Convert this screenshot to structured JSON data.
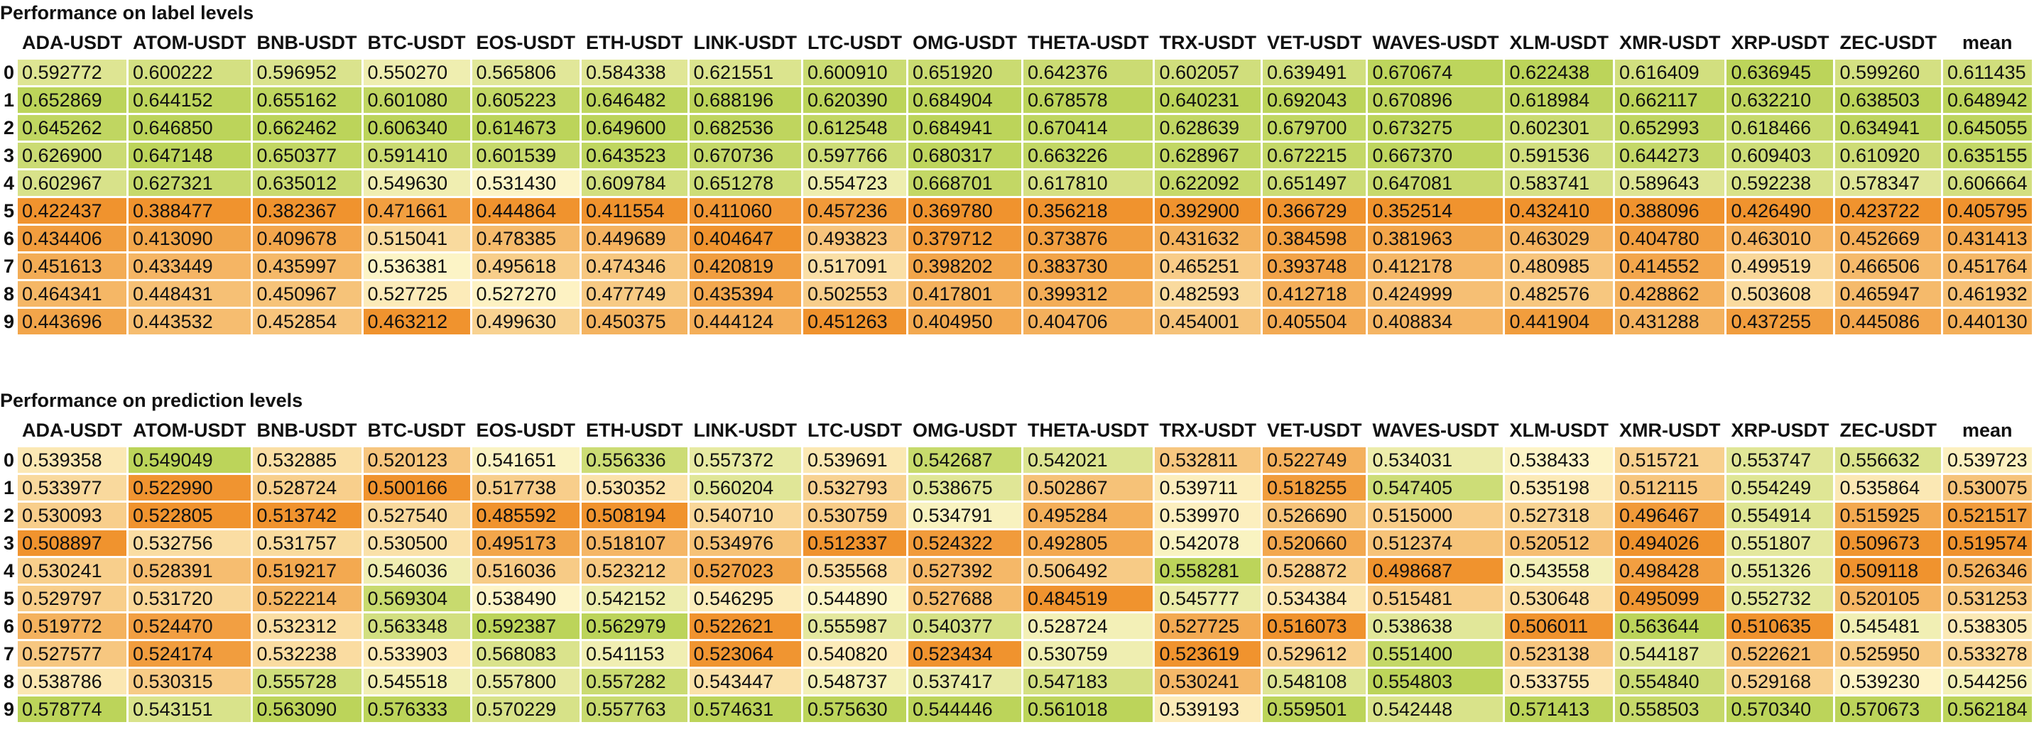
{
  "index_labels": [
    "0",
    "1",
    "2",
    "3",
    "4",
    "5",
    "6",
    "7",
    "8",
    "9"
  ],
  "columns": [
    "ADA-USDT",
    "ATOM-USDT",
    "BNB-USDT",
    "BTC-USDT",
    "EOS-USDT",
    "ETH-USDT",
    "LINK-USDT",
    "LTC-USDT",
    "OMG-USDT",
    "THETA-USDT",
    "TRX-USDT",
    "VET-USDT",
    "WAVES-USDT",
    "XLM-USDT",
    "XMR-USDT",
    "XRP-USDT",
    "ZEC-USDT",
    "mean"
  ],
  "heatmap_colors": {
    "low": "#f0932e",
    "mid": "#fdf5c8",
    "high": "#bcd45a"
  },
  "tables": [
    {
      "title": "Performance on label levels",
      "rows": [
        [
          "0.592772",
          "0.600222",
          "0.596952",
          "0.550270",
          "0.565806",
          "0.584338",
          "0.621551",
          "0.600910",
          "0.651920",
          "0.642376",
          "0.602057",
          "0.639491",
          "0.670674",
          "0.622438",
          "0.616409",
          "0.636945",
          "0.599260",
          "0.611435"
        ],
        [
          "0.652869",
          "0.644152",
          "0.655162",
          "0.601080",
          "0.605223",
          "0.646482",
          "0.688196",
          "0.620390",
          "0.684904",
          "0.678578",
          "0.640231",
          "0.692043",
          "0.670896",
          "0.618984",
          "0.662117",
          "0.632210",
          "0.638503",
          "0.648942"
        ],
        [
          "0.645262",
          "0.646850",
          "0.662462",
          "0.606340",
          "0.614673",
          "0.649600",
          "0.682536",
          "0.612548",
          "0.684941",
          "0.670414",
          "0.628639",
          "0.679700",
          "0.673275",
          "0.602301",
          "0.652993",
          "0.618466",
          "0.634941",
          "0.645055"
        ],
        [
          "0.626900",
          "0.647148",
          "0.650377",
          "0.591410",
          "0.601539",
          "0.643523",
          "0.670736",
          "0.597766",
          "0.680317",
          "0.663226",
          "0.628967",
          "0.672215",
          "0.667370",
          "0.591536",
          "0.644273",
          "0.609403",
          "0.610920",
          "0.635155"
        ],
        [
          "0.602967",
          "0.627321",
          "0.635012",
          "0.549630",
          "0.531430",
          "0.609784",
          "0.651278",
          "0.554723",
          "0.668701",
          "0.617810",
          "0.622092",
          "0.651497",
          "0.647081",
          "0.583741",
          "0.589643",
          "0.592238",
          "0.578347",
          "0.606664"
        ],
        [
          "0.422437",
          "0.388477",
          "0.382367",
          "0.471661",
          "0.444864",
          "0.411554",
          "0.411060",
          "0.457236",
          "0.369780",
          "0.356218",
          "0.392900",
          "0.366729",
          "0.352514",
          "0.432410",
          "0.388096",
          "0.426490",
          "0.423722",
          "0.405795"
        ],
        [
          "0.434406",
          "0.413090",
          "0.409678",
          "0.515041",
          "0.478385",
          "0.449689",
          "0.404647",
          "0.493823",
          "0.379712",
          "0.373876",
          "0.431632",
          "0.384598",
          "0.381963",
          "0.463029",
          "0.404780",
          "0.463010",
          "0.452669",
          "0.431413"
        ],
        [
          "0.451613",
          "0.433449",
          "0.435997",
          "0.536381",
          "0.495618",
          "0.474346",
          "0.420819",
          "0.517091",
          "0.398202",
          "0.383730",
          "0.465251",
          "0.393748",
          "0.412178",
          "0.480985",
          "0.414552",
          "0.499519",
          "0.466506",
          "0.451764"
        ],
        [
          "0.464341",
          "0.448431",
          "0.450967",
          "0.527725",
          "0.527270",
          "0.477749",
          "0.435394",
          "0.502553",
          "0.417801",
          "0.399312",
          "0.482593",
          "0.412718",
          "0.424999",
          "0.482576",
          "0.428862",
          "0.503608",
          "0.465947",
          "0.461932"
        ],
        [
          "0.443696",
          "0.443532",
          "0.452854",
          "0.463212",
          "0.499630",
          "0.450375",
          "0.444124",
          "0.451263",
          "0.404950",
          "0.404706",
          "0.454001",
          "0.405504",
          "0.408834",
          "0.441904",
          "0.431288",
          "0.437255",
          "0.445086",
          "0.440130"
        ]
      ]
    },
    {
      "title": "Performance on prediction levels",
      "rows": [
        [
          "0.539358",
          "0.549049",
          "0.532885",
          "0.520123",
          "0.541651",
          "0.556336",
          "0.557372",
          "0.539691",
          "0.542687",
          "0.542021",
          "0.532811",
          "0.522749",
          "0.534031",
          "0.538433",
          "0.515721",
          "0.553747",
          "0.556632",
          "0.539723"
        ],
        [
          "0.533977",
          "0.522990",
          "0.528724",
          "0.500166",
          "0.517738",
          "0.530352",
          "0.560204",
          "0.532793",
          "0.538675",
          "0.502867",
          "0.539711",
          "0.518255",
          "0.547405",
          "0.535198",
          "0.512115",
          "0.554249",
          "0.535864",
          "0.530075"
        ],
        [
          "0.530093",
          "0.522805",
          "0.513742",
          "0.527540",
          "0.485592",
          "0.508194",
          "0.540710",
          "0.530759",
          "0.534791",
          "0.495284",
          "0.539970",
          "0.526690",
          "0.515000",
          "0.527318",
          "0.496467",
          "0.554914",
          "0.515925",
          "0.521517"
        ],
        [
          "0.508897",
          "0.532756",
          "0.531757",
          "0.530500",
          "0.495173",
          "0.518107",
          "0.534976",
          "0.512337",
          "0.524322",
          "0.492805",
          "0.542078",
          "0.520660",
          "0.512374",
          "0.520512",
          "0.494026",
          "0.551807",
          "0.509673",
          "0.519574"
        ],
        [
          "0.530241",
          "0.528391",
          "0.519217",
          "0.546036",
          "0.516036",
          "0.523212",
          "0.527023",
          "0.535568",
          "0.527392",
          "0.506492",
          "0.558281",
          "0.528872",
          "0.498687",
          "0.543558",
          "0.498428",
          "0.551326",
          "0.509118",
          "0.526346"
        ],
        [
          "0.529797",
          "0.531720",
          "0.522214",
          "0.569304",
          "0.538490",
          "0.542152",
          "0.546295",
          "0.544890",
          "0.527688",
          "0.484519",
          "0.545777",
          "0.534384",
          "0.515481",
          "0.530648",
          "0.495099",
          "0.552732",
          "0.520105",
          "0.531253"
        ],
        [
          "0.519772",
          "0.524470",
          "0.532312",
          "0.563348",
          "0.592387",
          "0.562979",
          "0.522621",
          "0.555987",
          "0.540377",
          "0.528724",
          "0.527725",
          "0.516073",
          "0.538638",
          "0.506011",
          "0.563644",
          "0.510635",
          "0.545481",
          "0.538305"
        ],
        [
          "0.527577",
          "0.524174",
          "0.532238",
          "0.533903",
          "0.568083",
          "0.541153",
          "0.523064",
          "0.540820",
          "0.523434",
          "0.530759",
          "0.523619",
          "0.529612",
          "0.551400",
          "0.523138",
          "0.544187",
          "0.522621",
          "0.525950",
          "0.533278"
        ],
        [
          "0.538786",
          "0.530315",
          "0.555728",
          "0.545518",
          "0.557800",
          "0.557282",
          "0.543447",
          "0.548737",
          "0.537417",
          "0.547183",
          "0.530241",
          "0.548108",
          "0.554803",
          "0.533755",
          "0.554840",
          "0.529168",
          "0.539230",
          "0.544256"
        ],
        [
          "0.578774",
          "0.543151",
          "0.563090",
          "0.576333",
          "0.570229",
          "0.557763",
          "0.574631",
          "0.575630",
          "0.544446",
          "0.561018",
          "0.539193",
          "0.559501",
          "0.542448",
          "0.571413",
          "0.558503",
          "0.570340",
          "0.570673",
          "0.562184"
        ]
      ]
    }
  ]
}
